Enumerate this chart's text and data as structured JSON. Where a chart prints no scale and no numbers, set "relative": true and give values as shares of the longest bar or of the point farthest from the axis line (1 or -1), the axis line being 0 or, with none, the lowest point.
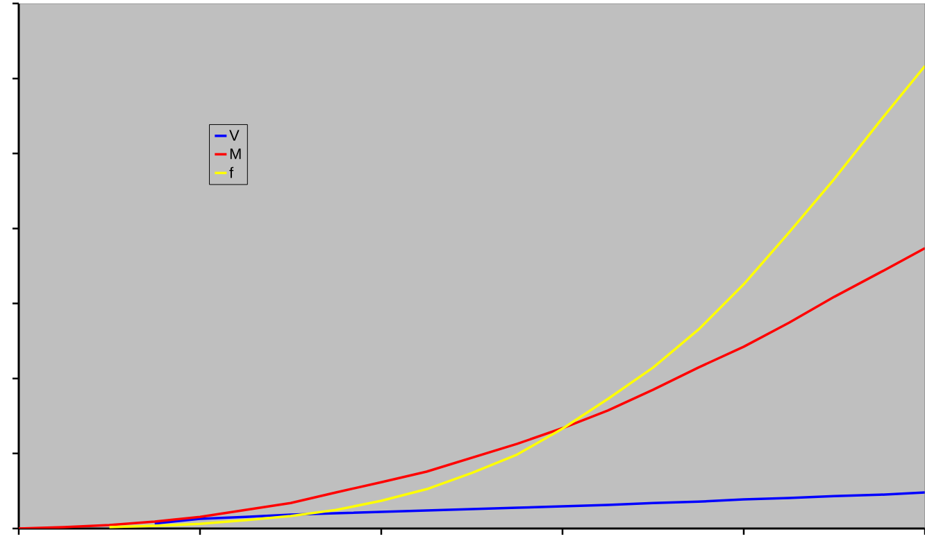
{
  "chart_data": {
    "type": "line",
    "relative": true,
    "legend": "top left",
    "grid": false,
    "marker": "none",
    "line_style": "solid",
    "categories": [
      null,
      null,
      null,
      null,
      null,
      null,
      null,
      null,
      null,
      null,
      null,
      null,
      null,
      null,
      null,
      null,
      null,
      null,
      null,
      null,
      null
    ],
    "series": [
      {
        "name": "V",
        "color": "#0000ff",
        "values": [
          null,
          null,
          null,
          0.011,
          0.021,
          0.025,
          0.03,
          0.033,
          0.036,
          0.039,
          0.042,
          0.045,
          0.048,
          0.051,
          0.055,
          0.058,
          0.063,
          0.066,
          0.07,
          0.073,
          0.078
        ]
      },
      {
        "name": "M",
        "color": "#ff0000",
        "values": [
          0,
          0.003,
          0.0075,
          0.015,
          0.025,
          0.04,
          0.055,
          0.078,
          0.1,
          0.123,
          0.153,
          0.183,
          0.217,
          0.255,
          0.3,
          0.348,
          0.393,
          0.445,
          0.501,
          0.553,
          0.606
        ]
      },
      {
        "name": "f",
        "color": "#ffff00",
        "values": [
          null,
          null,
          0.003,
          0.006,
          0.01,
          0.018,
          0.027,
          0.04,
          0.06,
          0.085,
          0.12,
          0.16,
          0.216,
          0.28,
          0.348,
          0.43,
          0.528,
          0.64,
          0.756,
          0.88,
          1
        ]
      }
    ]
  }
}
